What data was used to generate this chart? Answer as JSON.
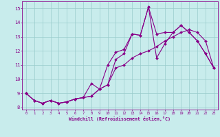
{
  "xlabel": "Windchill (Refroidissement éolien,°C)",
  "bg_color": "#c8ecec",
  "line_color": "#880088",
  "grid_color": "#99cccc",
  "xlim_min": -0.5,
  "xlim_max": 23.5,
  "ylim_min": 7.85,
  "ylim_max": 15.5,
  "xticks": [
    0,
    1,
    2,
    3,
    4,
    5,
    6,
    7,
    8,
    9,
    10,
    11,
    12,
    13,
    14,
    15,
    16,
    17,
    18,
    19,
    20,
    21,
    22,
    23
  ],
  "yticks": [
    8,
    9,
    10,
    11,
    12,
    13,
    14,
    15
  ],
  "lines": [
    {
      "x": [
        0,
        1,
        2,
        3,
        4,
        5,
        6,
        7,
        8,
        9,
        10,
        11,
        12,
        13,
        14,
        15,
        16,
        17,
        18,
        19,
        20,
        21,
        22,
        23
      ],
      "y": [
        9.0,
        8.5,
        8.3,
        8.5,
        8.3,
        8.4,
        8.6,
        8.7,
        9.7,
        9.3,
        9.6,
        10.8,
        11.0,
        11.5,
        11.8,
        12.0,
        12.3,
        12.7,
        13.0,
        13.3,
        13.5,
        13.3,
        12.7,
        10.8
      ]
    },
    {
      "x": [
        0,
        1,
        2,
        3,
        4,
        5,
        6,
        7,
        8,
        9,
        10,
        11,
        12,
        13,
        14,
        15,
        16,
        17,
        18,
        19,
        20,
        21,
        22,
        23
      ],
      "y": [
        9.0,
        8.5,
        8.3,
        8.5,
        8.3,
        8.4,
        8.6,
        8.7,
        8.8,
        9.3,
        11.0,
        11.9,
        12.1,
        13.2,
        13.1,
        15.1,
        11.5,
        12.5,
        13.3,
        13.8,
        13.3,
        12.7,
        11.8,
        10.8
      ]
    },
    {
      "x": [
        0,
        1,
        2,
        3,
        4,
        5,
        6,
        7,
        8,
        9,
        10,
        11,
        12,
        13,
        14,
        15,
        16,
        17,
        18,
        19,
        20,
        21,
        22,
        23
      ],
      "y": [
        9.0,
        8.5,
        8.3,
        8.5,
        8.3,
        8.4,
        8.6,
        8.7,
        8.8,
        9.3,
        9.6,
        11.4,
        11.8,
        13.2,
        13.1,
        15.1,
        13.2,
        13.3,
        13.3,
        13.8,
        13.3,
        12.7,
        11.8,
        10.8
      ]
    }
  ]
}
